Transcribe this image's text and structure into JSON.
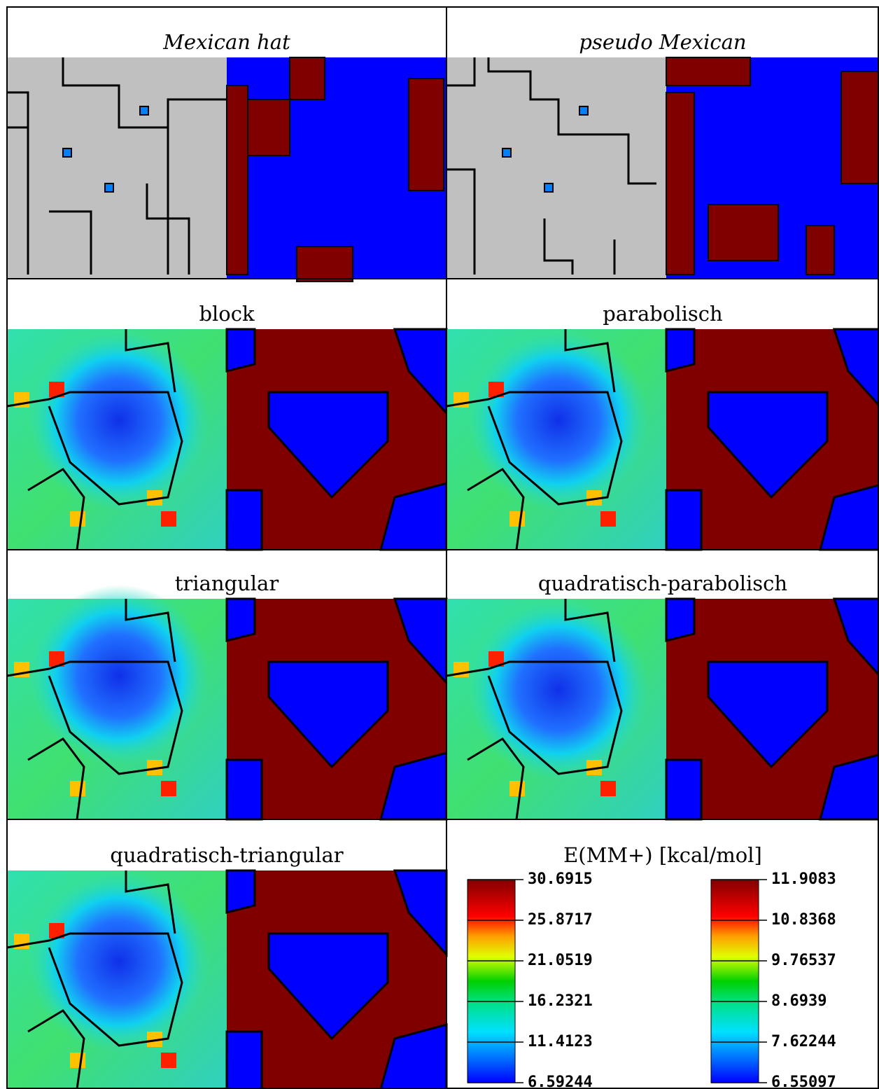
{
  "panels": [
    {
      "title": "Mexican hat"
    },
    {
      "title": "pseudo Mexican"
    },
    {
      "title": "block"
    },
    {
      "title": "parabolisch"
    },
    {
      "title": "triangular"
    },
    {
      "title": "quadratisch-parabolisch"
    },
    {
      "title": "quadratisch-triangular"
    }
  ],
  "legend": {
    "title": "E(MM+) [kcal/mol]",
    "scales": [
      {
        "labels": [
          "30.6915",
          "25.8717",
          "21.0519",
          "16.2321",
          "11.4123",
          "6.59244"
        ]
      },
      {
        "labels": [
          "11.9083",
          "10.8368",
          "9.76537",
          "8.6939",
          "7.62244",
          "6.55097"
        ]
      }
    ]
  }
}
